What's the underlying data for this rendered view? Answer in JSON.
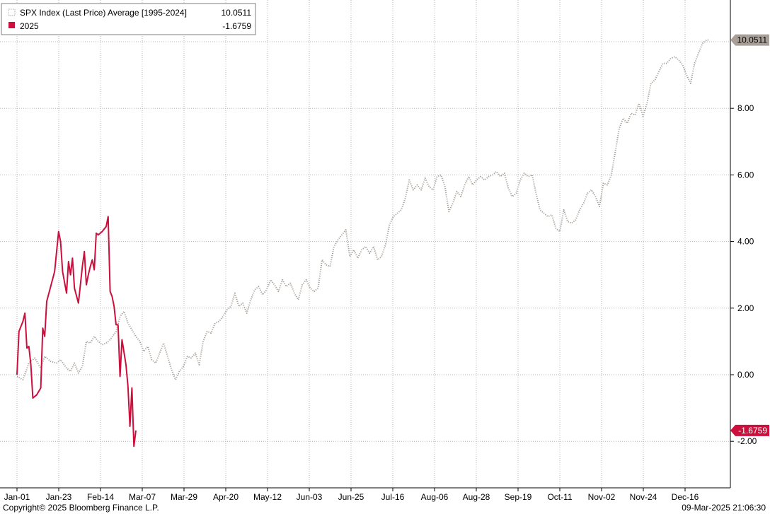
{
  "chart_data": {
    "type": "line",
    "legend": {
      "position": "top-left"
    },
    "grid": true,
    "ylim": [
      -3.4,
      11.2
    ],
    "y_ticks": [
      {
        "value": 8,
        "label": "8.00"
      },
      {
        "value": 6,
        "label": "6.00"
      },
      {
        "value": 4,
        "label": "4.00"
      },
      {
        "value": 2,
        "label": "2.00"
      },
      {
        "value": 0,
        "label": "0.00"
      },
      {
        "value": -2,
        "label": "-2.00"
      }
    ],
    "x_ticks": [
      "Jan-01",
      "Jan-23",
      "Feb-14",
      "Mar-07",
      "Mar-29",
      "Apr-20",
      "May-12",
      "Jun-03",
      "Jun-25",
      "Jul-16",
      "Aug-06",
      "Aug-28",
      "Sep-19",
      "Oct-11",
      "Nov-02",
      "Nov-24",
      "Dec-16"
    ],
    "series": [
      {
        "name": "SPX Index (Last Price) Average [1995-2024]",
        "last_value": "10.0511",
        "color": "#a89f98",
        "style": "dotted",
        "points": [
          [
            0,
            -0.05
          ],
          [
            3,
            -0.15
          ],
          [
            6,
            0.35
          ],
          [
            9,
            0.5
          ],
          [
            12,
            0.2
          ],
          [
            14,
            0.55
          ],
          [
            17,
            0.4
          ],
          [
            20,
            0.35
          ],
          [
            22,
            0.45
          ],
          [
            25,
            0.2
          ],
          [
            27,
            0.1
          ],
          [
            29,
            0.35
          ],
          [
            31,
            0.05
          ],
          [
            33,
            0.25
          ],
          [
            35,
            1.0
          ],
          [
            37,
            0.95
          ],
          [
            39,
            1.15
          ],
          [
            41,
            1.0
          ],
          [
            43,
            0.9
          ],
          [
            45,
            0.95
          ],
          [
            47,
            1.05
          ],
          [
            50,
            1.3
          ],
          [
            52,
            1.75
          ],
          [
            54,
            1.9
          ],
          [
            56,
            1.55
          ],
          [
            58,
            1.35
          ],
          [
            60,
            1.15
          ],
          [
            62,
            1.0
          ],
          [
            64,
            0.7
          ],
          [
            66,
            0.85
          ],
          [
            68,
            0.45
          ],
          [
            70,
            0.35
          ],
          [
            72,
            0.65
          ],
          [
            74,
            0.95
          ],
          [
            76,
            0.55
          ],
          [
            78,
            0.15
          ],
          [
            80,
            -0.15
          ],
          [
            82,
            0.1
          ],
          [
            84,
            0.25
          ],
          [
            86,
            0.55
          ],
          [
            88,
            0.5
          ],
          [
            90,
            0.65
          ],
          [
            92,
            0.3
          ],
          [
            94,
            1.0
          ],
          [
            96,
            1.3
          ],
          [
            98,
            1.25
          ],
          [
            100,
            1.55
          ],
          [
            102,
            1.6
          ],
          [
            104,
            1.75
          ],
          [
            106,
            1.95
          ],
          [
            108,
            2.05
          ],
          [
            110,
            2.45
          ],
          [
            112,
            2.05
          ],
          [
            114,
            2.15
          ],
          [
            116,
            1.85
          ],
          [
            118,
            2.25
          ],
          [
            120,
            2.55
          ],
          [
            122,
            2.65
          ],
          [
            124,
            2.4
          ],
          [
            126,
            2.55
          ],
          [
            128,
            2.85
          ],
          [
            130,
            2.7
          ],
          [
            132,
            2.5
          ],
          [
            134,
            2.85
          ],
          [
            136,
            2.65
          ],
          [
            138,
            2.75
          ],
          [
            140,
            2.45
          ],
          [
            142,
            2.25
          ],
          [
            144,
            2.7
          ],
          [
            146,
            2.85
          ],
          [
            148,
            2.6
          ],
          [
            150,
            2.5
          ],
          [
            152,
            2.6
          ],
          [
            154,
            3.45
          ],
          [
            156,
            3.3
          ],
          [
            158,
            3.25
          ],
          [
            160,
            3.85
          ],
          [
            162,
            4.05
          ],
          [
            164,
            4.2
          ],
          [
            166,
            4.35
          ],
          [
            168,
            3.55
          ],
          [
            170,
            3.75
          ],
          [
            172,
            3.5
          ],
          [
            174,
            3.75
          ],
          [
            176,
            3.85
          ],
          [
            178,
            3.65
          ],
          [
            180,
            3.85
          ],
          [
            182,
            3.45
          ],
          [
            184,
            3.55
          ],
          [
            186,
            3.9
          ],
          [
            188,
            4.5
          ],
          [
            190,
            4.75
          ],
          [
            192,
            4.85
          ],
          [
            194,
            4.95
          ],
          [
            196,
            5.3
          ],
          [
            198,
            5.85
          ],
          [
            200,
            5.55
          ],
          [
            202,
            5.7
          ],
          [
            204,
            5.55
          ],
          [
            206,
            5.9
          ],
          [
            208,
            5.65
          ],
          [
            210,
            5.55
          ],
          [
            212,
            5.95
          ],
          [
            214,
            6.0
          ],
          [
            216,
            5.65
          ],
          [
            218,
            4.9
          ],
          [
            220,
            5.15
          ],
          [
            222,
            5.5
          ],
          [
            224,
            5.35
          ],
          [
            226,
            5.7
          ],
          [
            228,
            5.95
          ],
          [
            230,
            5.7
          ],
          [
            232,
            5.85
          ],
          [
            234,
            5.95
          ],
          [
            236,
            5.85
          ],
          [
            238,
            5.95
          ],
          [
            240,
            6.0
          ],
          [
            242,
            6.1
          ],
          [
            244,
            5.95
          ],
          [
            246,
            6.05
          ],
          [
            248,
            5.6
          ],
          [
            250,
            5.35
          ],
          [
            252,
            5.45
          ],
          [
            254,
            5.85
          ],
          [
            256,
            6.05
          ],
          [
            258,
            5.95
          ],
          [
            260,
            6.0
          ],
          [
            262,
            5.45
          ],
          [
            264,
            4.95
          ],
          [
            266,
            4.85
          ],
          [
            268,
            4.75
          ],
          [
            270,
            4.8
          ],
          [
            272,
            4.4
          ],
          [
            274,
            4.3
          ],
          [
            276,
            4.95
          ],
          [
            278,
            4.6
          ],
          [
            280,
            4.55
          ],
          [
            282,
            4.65
          ],
          [
            284,
            4.95
          ],
          [
            286,
            5.15
          ],
          [
            288,
            5.45
          ],
          [
            290,
            5.55
          ],
          [
            292,
            5.35
          ],
          [
            294,
            5.05
          ],
          [
            296,
            5.75
          ],
          [
            298,
            5.7
          ],
          [
            300,
            6.0
          ],
          [
            302,
            6.7
          ],
          [
            304,
            7.4
          ],
          [
            306,
            7.7
          ],
          [
            308,
            7.55
          ],
          [
            310,
            7.85
          ],
          [
            312,
            7.8
          ],
          [
            314,
            8.15
          ],
          [
            316,
            7.75
          ],
          [
            318,
            8.15
          ],
          [
            320,
            8.75
          ],
          [
            322,
            8.85
          ],
          [
            324,
            9.1
          ],
          [
            326,
            9.35
          ],
          [
            328,
            9.35
          ],
          [
            330,
            9.5
          ],
          [
            332,
            9.55
          ],
          [
            334,
            9.45
          ],
          [
            336,
            9.3
          ],
          [
            338,
            9.0
          ],
          [
            340,
            8.75
          ],
          [
            342,
            9.35
          ],
          [
            344,
            9.65
          ],
          [
            346,
            9.95
          ],
          [
            348,
            10.05
          ],
          [
            349,
            10.0511
          ]
        ]
      },
      {
        "name": "2025",
        "last_value": "-1.6759",
        "color": "#cc0f3c",
        "style": "solid",
        "points": [
          [
            0,
            0.0
          ],
          [
            1,
            1.3
          ],
          [
            3,
            1.6
          ],
          [
            4,
            1.85
          ],
          [
            5,
            0.8
          ],
          [
            6,
            0.85
          ],
          [
            7,
            0.3
          ],
          [
            8,
            -0.7
          ],
          [
            10,
            -0.6
          ],
          [
            12,
            -0.4
          ],
          [
            13,
            1.4
          ],
          [
            14,
            1.15
          ],
          [
            15,
            2.2
          ],
          [
            17,
            2.65
          ],
          [
            19,
            3.1
          ],
          [
            21,
            4.3
          ],
          [
            22,
            4.0
          ],
          [
            23,
            3.1
          ],
          [
            25,
            2.45
          ],
          [
            26,
            3.4
          ],
          [
            27,
            3.0
          ],
          [
            28,
            3.5
          ],
          [
            29,
            2.6
          ],
          [
            31,
            2.15
          ],
          [
            33,
            3.25
          ],
          [
            34,
            3.7
          ],
          [
            35,
            2.7
          ],
          [
            36,
            3.0
          ],
          [
            37,
            3.25
          ],
          [
            38,
            3.45
          ],
          [
            39,
            3.15
          ],
          [
            40,
            4.25
          ],
          [
            41,
            4.2
          ],
          [
            43,
            4.3
          ],
          [
            45,
            4.45
          ],
          [
            46,
            4.75
          ],
          [
            47,
            2.5
          ],
          [
            48,
            2.35
          ],
          [
            49,
            2.05
          ],
          [
            50,
            1.5
          ],
          [
            51,
            1.5
          ],
          [
            52,
            -0.05
          ],
          [
            53,
            1.05
          ],
          [
            55,
            0.3
          ],
          [
            56,
            -0.35
          ],
          [
            57,
            -1.55
          ],
          [
            58,
            -0.4
          ],
          [
            59,
            -2.15
          ],
          [
            60,
            -1.6759
          ]
        ]
      }
    ]
  },
  "legend": {
    "avg_label": "SPX Index (Last Price) Average [1995-2024]",
    "avg_value": "10.0511",
    "yr_label": "2025",
    "yr_value": "-1.6759"
  },
  "footer": {
    "copyright": "Copyright© 2025 Bloomberg Finance L.P.",
    "timestamp": "09-Mar-2025 21:06:30"
  }
}
